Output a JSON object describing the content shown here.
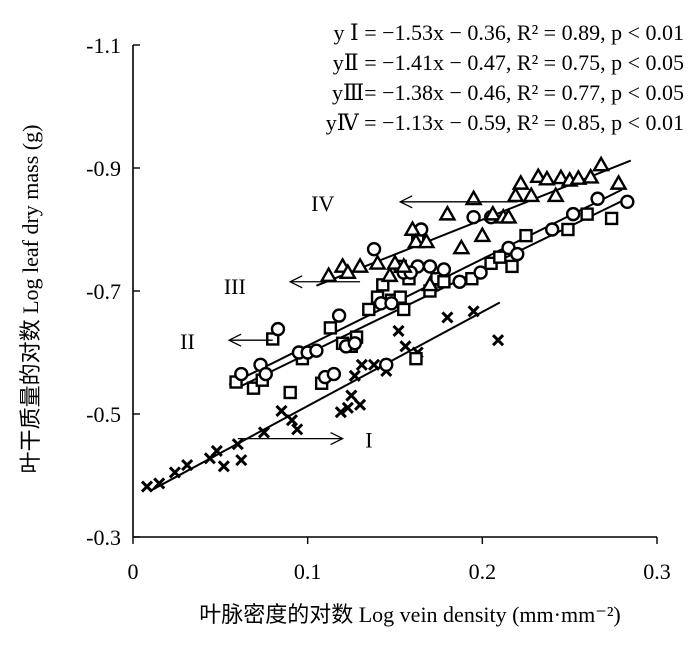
{
  "chart_data": {
    "type": "scatter",
    "xlabel": "叶脉密度的对数 Log vein density (mm·mm⁻²)",
    "ylabel": "叶干质量的对数 Log leaf dry mass (g)",
    "xlim": [
      0,
      0.3
    ],
    "ylim": [
      -0.3,
      -1.1
    ],
    "x_ticks": [
      0,
      0.1,
      0.2,
      0.3
    ],
    "x_tick_labels": [
      "0",
      "0.1",
      "0.2",
      "0.3"
    ],
    "y_ticks": [
      -0.3,
      -0.5,
      -0.7,
      -0.9,
      -1.1
    ],
    "y_tick_labels": [
      "-0.3",
      "-0.5",
      "-0.7",
      "-0.9",
      "-1.1"
    ],
    "grid": false,
    "equations": [
      {
        "name": "I",
        "label": "y Ⅰ = −1.53x − 0.36, R² = 0.89, p < 0.01"
      },
      {
        "name": "II",
        "label": "yⅡ = −1.41x − 0.47, R² = 0.75, p < 0.05"
      },
      {
        "name": "III",
        "label": "yⅢ= −1.38x − 0.46, R² = 0.77, p < 0.05"
      },
      {
        "name": "IV",
        "label": "yⅣ = −1.13x − 0.59, R² = 0.85, p < 0.01"
      }
    ],
    "series": [
      {
        "name": "I",
        "marker": "x",
        "color": "#000000",
        "fit": {
          "slope": -1.53,
          "intercept": -0.36,
          "x_range": [
            0.01,
            0.21
          ]
        },
        "annotation": {
          "text": "I",
          "arrow": "right",
          "at": [
            0.133,
            -0.46
          ],
          "tail": [
            0.06,
            -0.46
          ],
          "head": [
            0.12,
            -0.46
          ]
        },
        "points": [
          [
            0.008,
            -0.382
          ],
          [
            0.015,
            -0.387
          ],
          [
            0.024,
            -0.405
          ],
          [
            0.031,
            -0.417
          ],
          [
            0.044,
            -0.428
          ],
          [
            0.048,
            -0.44
          ],
          [
            0.052,
            -0.415
          ],
          [
            0.06,
            -0.451
          ],
          [
            0.062,
            -0.425
          ],
          [
            0.075,
            -0.47
          ],
          [
            0.085,
            -0.505
          ],
          [
            0.091,
            -0.49
          ],
          [
            0.094,
            -0.475
          ],
          [
            0.119,
            -0.503
          ],
          [
            0.123,
            -0.51
          ],
          [
            0.125,
            -0.53
          ],
          [
            0.13,
            -0.515
          ],
          [
            0.127,
            -0.562
          ],
          [
            0.131,
            -0.58
          ],
          [
            0.145,
            -0.57
          ],
          [
            0.152,
            -0.635
          ],
          [
            0.156,
            -0.61
          ],
          [
            0.163,
            -0.6
          ],
          [
            0.18,
            -0.657
          ],
          [
            0.195,
            -0.667
          ],
          [
            0.209,
            -0.62
          ],
          [
            0.138,
            -0.58
          ]
        ]
      },
      {
        "name": "II",
        "marker": "square",
        "color": "#000000",
        "fit": {
          "slope": -1.41,
          "intercept": -0.47,
          "x_range": [
            0.055,
            0.28
          ]
        },
        "annotation": {
          "text": "II",
          "arrow": "left",
          "at": [
            0.027,
            -0.62
          ],
          "tail": [
            0.08,
            -0.62
          ],
          "head": [
            0.055,
            -0.62
          ]
        },
        "points": [
          [
            0.059,
            -0.552
          ],
          [
            0.069,
            -0.542
          ],
          [
            0.074,
            -0.555
          ],
          [
            0.08,
            -0.622
          ],
          [
            0.09,
            -0.535
          ],
          [
            0.097,
            -0.59
          ],
          [
            0.108,
            -0.55
          ],
          [
            0.113,
            -0.64
          ],
          [
            0.12,
            -0.615
          ],
          [
            0.125,
            -0.61
          ],
          [
            0.128,
            -0.625
          ],
          [
            0.135,
            -0.67
          ],
          [
            0.14,
            -0.69
          ],
          [
            0.143,
            -0.71
          ],
          [
            0.148,
            -0.685
          ],
          [
            0.153,
            -0.69
          ],
          [
            0.155,
            -0.67
          ],
          [
            0.158,
            -0.72
          ],
          [
            0.163,
            -0.782
          ],
          [
            0.17,
            -0.7
          ],
          [
            0.174,
            -0.72
          ],
          [
            0.178,
            -0.715
          ],
          [
            0.194,
            -0.72
          ],
          [
            0.205,
            -0.745
          ],
          [
            0.21,
            -0.755
          ],
          [
            0.217,
            -0.74
          ],
          [
            0.225,
            -0.79
          ],
          [
            0.249,
            -0.8
          ],
          [
            0.26,
            -0.825
          ],
          [
            0.274,
            -0.818
          ],
          [
            0.162,
            -0.59
          ],
          [
            0.153,
            -0.74
          ]
        ]
      },
      {
        "name": "III",
        "marker": "circle",
        "color": "#000000",
        "fit": {
          "slope": -1.38,
          "intercept": -0.46,
          "x_range": [
            0.06,
            0.28
          ]
        },
        "annotation": {
          "text": "III",
          "arrow": "left",
          "at": [
            0.052,
            -0.71
          ],
          "tail": [
            0.13,
            -0.715
          ],
          "head": [
            0.09,
            -0.715
          ]
        },
        "points": [
          [
            0.062,
            -0.565
          ],
          [
            0.073,
            -0.58
          ],
          [
            0.076,
            -0.565
          ],
          [
            0.083,
            -0.638
          ],
          [
            0.095,
            -0.6
          ],
          [
            0.1,
            -0.6
          ],
          [
            0.105,
            -0.603
          ],
          [
            0.11,
            -0.56
          ],
          [
            0.115,
            -0.565
          ],
          [
            0.118,
            -0.66
          ],
          [
            0.122,
            -0.61
          ],
          [
            0.127,
            -0.615
          ],
          [
            0.138,
            -0.768
          ],
          [
            0.142,
            -0.68
          ],
          [
            0.148,
            -0.68
          ],
          [
            0.155,
            -0.73
          ],
          [
            0.163,
            -0.74
          ],
          [
            0.165,
            -0.8
          ],
          [
            0.17,
            -0.74
          ],
          [
            0.178,
            -0.735
          ],
          [
            0.187,
            -0.715
          ],
          [
            0.195,
            -0.82
          ],
          [
            0.199,
            -0.73
          ],
          [
            0.205,
            -0.82
          ],
          [
            0.215,
            -0.77
          ],
          [
            0.22,
            -0.76
          ],
          [
            0.24,
            -0.8
          ],
          [
            0.252,
            -0.825
          ],
          [
            0.266,
            -0.85
          ],
          [
            0.283,
            -0.845
          ],
          [
            0.159,
            -0.73
          ],
          [
            0.145,
            -0.58
          ]
        ]
      },
      {
        "name": "IV",
        "marker": "triangle",
        "color": "#000000",
        "fit": {
          "slope": -1.13,
          "intercept": -0.59,
          "x_range": [
            0.105,
            0.285
          ]
        },
        "annotation": {
          "text": "IV",
          "arrow": "left",
          "at": [
            0.102,
            -0.845
          ],
          "tail": [
            0.22,
            -0.845
          ],
          "head": [
            0.153,
            -0.845
          ]
        },
        "points": [
          [
            0.112,
            -0.725
          ],
          [
            0.12,
            -0.74
          ],
          [
            0.123,
            -0.73
          ],
          [
            0.13,
            -0.74
          ],
          [
            0.14,
            -0.745
          ],
          [
            0.147,
            -0.725
          ],
          [
            0.15,
            -0.745
          ],
          [
            0.155,
            -0.74
          ],
          [
            0.16,
            -0.8
          ],
          [
            0.162,
            -0.78
          ],
          [
            0.168,
            -0.78
          ],
          [
            0.17,
            -0.71
          ],
          [
            0.18,
            -0.825
          ],
          [
            0.188,
            -0.77
          ],
          [
            0.195,
            -0.85
          ],
          [
            0.2,
            -0.79
          ],
          [
            0.206,
            -0.825
          ],
          [
            0.212,
            -0.82
          ],
          [
            0.215,
            -0.82
          ],
          [
            0.219,
            -0.855
          ],
          [
            0.222,
            -0.875
          ],
          [
            0.228,
            -0.855
          ],
          [
            0.232,
            -0.886
          ],
          [
            0.237,
            -0.882
          ],
          [
            0.242,
            -0.855
          ],
          [
            0.245,
            -0.884
          ],
          [
            0.25,
            -0.88
          ],
          [
            0.255,
            -0.883
          ],
          [
            0.262,
            -0.885
          ],
          [
            0.268,
            -0.905
          ],
          [
            0.278,
            -0.875
          ]
        ]
      }
    ]
  }
}
